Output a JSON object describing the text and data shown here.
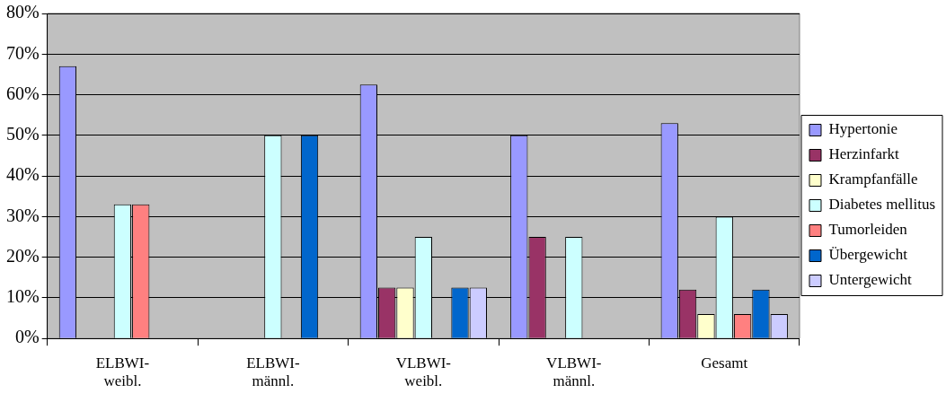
{
  "chart_data": {
    "type": "bar",
    "categories": [
      "ELBWI-weibl.",
      "ELBWI-männl.",
      "VLBWI-weibl.",
      "VLBWI-männl.",
      "Gesamt"
    ],
    "series": [
      {
        "name": "Hypertonie",
        "color": "#9999ff",
        "values": [
          67,
          null,
          62.5,
          50,
          53
        ]
      },
      {
        "name": "Herzinfarkt",
        "color": "#993366",
        "values": [
          null,
          null,
          12.5,
          25,
          12
        ]
      },
      {
        "name": "Krampfanfälle",
        "color": "#ffffcc",
        "values": [
          null,
          null,
          12.5,
          null,
          6
        ]
      },
      {
        "name": "Diabetes mellitus",
        "color": "#ccffff",
        "values": [
          33,
          50,
          25,
          25,
          30
        ]
      },
      {
        "name": "Tumorleiden",
        "color": "#ff8080",
        "values": [
          33,
          null,
          null,
          null,
          6
        ]
      },
      {
        "name": "Übergewicht",
        "color": "#0066cc",
        "values": [
          null,
          50,
          12.5,
          null,
          12
        ]
      },
      {
        "name": "Untergewicht",
        "color": "#ccccff",
        "values": [
          null,
          null,
          12.5,
          null,
          6
        ]
      }
    ],
    "ylim": [
      0,
      80
    ],
    "yticks": [
      {
        "value": 0,
        "label": "0%"
      },
      {
        "value": 10,
        "label": "10%"
      },
      {
        "value": 20,
        "label": "20%"
      },
      {
        "value": 30,
        "label": "30%"
      },
      {
        "value": 40,
        "label": "40%"
      },
      {
        "value": 50,
        "label": "50%"
      },
      {
        "value": 60,
        "label": "60%"
      },
      {
        "value": 70,
        "label": "70%"
      },
      {
        "value": 80,
        "label": "80%"
      }
    ],
    "grid": "y",
    "legend": "right"
  }
}
